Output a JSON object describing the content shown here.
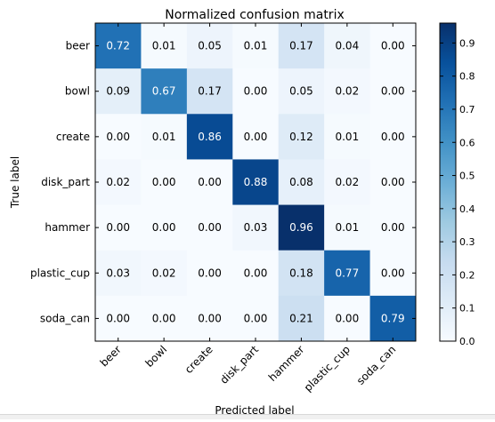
{
  "chart_data": {
    "type": "heatmap",
    "title": "Normalized confusion matrix",
    "xlabel": "Predicted label",
    "ylabel": "True label",
    "row_labels": [
      "beer",
      "bowl",
      "create",
      "disk_part",
      "hammer",
      "plastic_cup",
      "soda_can"
    ],
    "col_labels": [
      "beer",
      "bowl",
      "create",
      "disk_part",
      "hammer",
      "plastic_cup",
      "soda_can"
    ],
    "values": [
      [
        0.72,
        0.01,
        0.05,
        0.01,
        0.17,
        0.04,
        0.0
      ],
      [
        0.09,
        0.67,
        0.17,
        0.0,
        0.05,
        0.02,
        0.0
      ],
      [
        0.0,
        0.01,
        0.86,
        0.0,
        0.12,
        0.01,
        0.0
      ],
      [
        0.02,
        0.0,
        0.0,
        0.88,
        0.08,
        0.02,
        0.0
      ],
      [
        0.0,
        0.0,
        0.0,
        0.03,
        0.96,
        0.01,
        0.0
      ],
      [
        0.03,
        0.02,
        0.0,
        0.0,
        0.18,
        0.77,
        0.0
      ],
      [
        0.0,
        0.0,
        0.0,
        0.0,
        0.21,
        0.0,
        0.79
      ]
    ],
    "value_labels": [
      [
        "0.72",
        "0.01",
        "0.05",
        "0.01",
        "0.17",
        "0.04",
        "0.00"
      ],
      [
        "0.09",
        "0.67",
        "0.17",
        "0.00",
        "0.05",
        "0.02",
        "0.00"
      ],
      [
        "0.00",
        "0.01",
        "0.86",
        "0.00",
        "0.12",
        "0.01",
        "0.00"
      ],
      [
        "0.02",
        "0.00",
        "0.00",
        "0.88",
        "0.08",
        "0.02",
        "0.00"
      ],
      [
        "0.00",
        "0.00",
        "0.00",
        "0.03",
        "0.96",
        "0.01",
        "0.00"
      ],
      [
        "0.03",
        "0.02",
        "0.00",
        "0.00",
        "0.18",
        "0.77",
        "0.00"
      ],
      [
        "0.00",
        "0.00",
        "0.00",
        "0.00",
        "0.21",
        "0.00",
        "0.79"
      ]
    ],
    "colormap": "Blues",
    "colormap_stops": [
      "#f7fbff",
      "#deebf7",
      "#c6dbef",
      "#9ecae1",
      "#6baed6",
      "#4292c6",
      "#2171b5",
      "#08519c",
      "#08306b"
    ],
    "color_range": [
      0.0,
      0.96
    ],
    "colorbar": {
      "ticks": [
        0.0,
        0.1,
        0.2,
        0.3,
        0.4,
        0.5,
        0.6,
        0.7,
        0.8,
        0.9
      ],
      "tick_labels": [
        "0.0",
        "0.1",
        "0.2",
        "0.3",
        "0.4",
        "0.5",
        "0.6",
        "0.7",
        "0.8",
        "0.9"
      ]
    }
  }
}
